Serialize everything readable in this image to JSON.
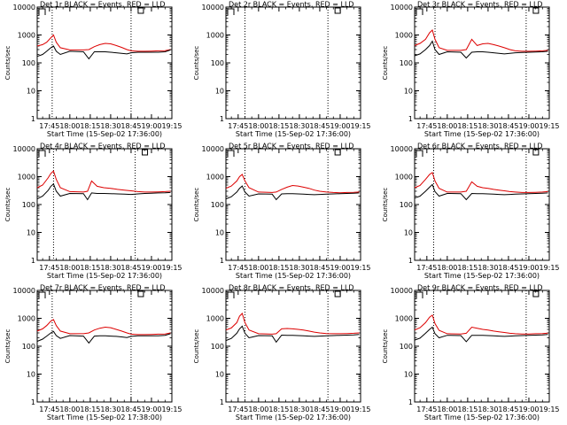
{
  "figure": {
    "panel_titles": [
      "Det 1r BLACK = Events, RED = LLD",
      "Det 2r BLACK = Events, RED = LLD",
      "Det 3r BLACK = Events, RED = LLD",
      "Det 4r BLACK = Events, RED = LLD",
      "Det 5r BLACK = Events, RED = LLD",
      "Det 6r BLACK = Events, RED = LLD",
      "Det 7r BLACK = Events, RED = LLD",
      "Det 8r BLACK = Events, RED = LLD",
      "Det 9r BLACK = Events, RED = LLD"
    ],
    "xlabels": [
      "Start Time (15-Sep-02 17:36:00)",
      "Start Time (15-Sep-02 17:36:00)",
      "Start Time (15-Sep-02 17:36:00)",
      "Start Time (15-Sep-02 17:36:00)",
      "Start Time (15-Sep-02 17:36:00)",
      "Start Time (15-Sep-02 17:36:00)",
      "Start Time (15-Sep-02 17:38:00)",
      "Start Time (15-Sep-02 17:36:00)",
      "Start Time (15-Sep-02 17:36:00)"
    ],
    "ylabel": "Counts/sec",
    "colors": {
      "events": "#000000",
      "lld": "#dd0000",
      "axes": "#000000",
      "background": "#ffffff"
    }
  },
  "chart_data": [
    {
      "type": "line",
      "title": "Det 1r BLACK = Events, RED = LLD",
      "xlabel": "Start Time (15-Sep-02 17:36:00)",
      "ylabel": "Counts/sec",
      "yscale": "log",
      "ylim": [
        1,
        10000
      ],
      "xlim": [
        "17:36",
        "19:15"
      ],
      "x_ticks": [
        "17:45",
        "18:00",
        "18:15",
        "18:30",
        "18:45",
        "19:00",
        "19:15"
      ],
      "y_ticks": [
        "1",
        "10",
        "100",
        "1000",
        "10000"
      ],
      "vlines": [
        "17:47",
        "18:45"
      ],
      "x": [
        "17:36",
        "17:40",
        "17:43",
        "17:46",
        "17:48",
        "17:50",
        "17:53",
        "18:00",
        "18:10",
        "18:14",
        "18:18",
        "18:22",
        "18:26",
        "18:30",
        "18:34",
        "18:38",
        "18:42",
        "18:45",
        "18:50",
        "18:55",
        "19:00",
        "19:05",
        "19:10",
        "19:14"
      ],
      "series": [
        {
          "name": "LLD",
          "color": "#dd0000",
          "values": [
            400,
            450,
            550,
            800,
            1000,
            550,
            350,
            290,
            290,
            300,
            380,
            450,
            500,
            480,
            420,
            360,
            300,
            270,
            260,
            260,
            265,
            270,
            275,
            300
          ]
        },
        {
          "name": "Events",
          "color": "#000000",
          "values": [
            170,
            200,
            260,
            350,
            400,
            260,
            200,
            260,
            250,
            140,
            250,
            250,
            250,
            240,
            230,
            220,
            210,
            230,
            240,
            240,
            240,
            240,
            250,
            290
          ]
        }
      ]
    },
    {
      "type": "line",
      "title": "Det 2r BLACK = Events, RED = LLD",
      "xlabel": "Start Time (15-Sep-02 17:36:00)",
      "ylabel": "Counts/sec",
      "yscale": "log",
      "ylim": [
        1,
        10000
      ],
      "xlim": [
        "17:36",
        "19:15"
      ],
      "x_ticks": [
        "17:45",
        "18:00",
        "18:15",
        "18:30",
        "18:45",
        "19:00",
        "19:15"
      ],
      "y_ticks": [
        "1",
        "10",
        "100",
        "1000",
        "10000"
      ],
      "vlines": [
        "17:50",
        "18:51"
      ],
      "x": [],
      "series": []
    },
    {
      "type": "line",
      "title": "Det 3r BLACK = Events, RED = LLD",
      "xlabel": "Start Time (15-Sep-02 17:36:00)",
      "ylabel": "Counts/sec",
      "yscale": "log",
      "ylim": [
        1,
        10000
      ],
      "xlim": [
        "17:36",
        "19:15"
      ],
      "x_ticks": [
        "17:45",
        "18:00",
        "18:15",
        "18:30",
        "18:45",
        "19:00",
        "19:15"
      ],
      "y_ticks": [
        "1",
        "10",
        "100",
        "1000",
        "10000"
      ],
      "vlines": [
        "17:51",
        "18:58"
      ],
      "x": [
        "17:36",
        "17:40",
        "17:44",
        "17:47",
        "17:49",
        "17:51",
        "17:54",
        "18:00",
        "18:10",
        "18:14",
        "18:18",
        "18:22",
        "18:26",
        "18:30",
        "18:34",
        "18:38",
        "18:42",
        "18:46",
        "18:50",
        "18:55",
        "19:00",
        "19:05",
        "19:10",
        "19:14"
      ],
      "series": [
        {
          "name": "LLD",
          "color": "#dd0000",
          "values": [
            420,
            500,
            700,
            1200,
            1500,
            700,
            350,
            280,
            280,
            300,
            700,
            420,
            480,
            500,
            450,
            400,
            350,
            300,
            270,
            260,
            260,
            265,
            270,
            280
          ]
        },
        {
          "name": "Events",
          "color": "#000000",
          "values": [
            180,
            210,
            300,
            420,
            600,
            300,
            200,
            250,
            240,
            150,
            240,
            250,
            250,
            240,
            230,
            220,
            210,
            220,
            230,
            235,
            240,
            245,
            250,
            260
          ]
        }
      ]
    },
    {
      "type": "line",
      "title": "Det 4r BLACK = Events, RED = LLD",
      "xlabel": "Start Time (15-Sep-02 17:36:00)",
      "ylabel": "Counts/sec",
      "yscale": "log",
      "ylim": [
        1,
        10000
      ],
      "xlim": [
        "17:36",
        "19:15"
      ],
      "x_ticks": [
        "17:45",
        "18:00",
        "18:15",
        "18:30",
        "18:45",
        "19:00",
        "19:15"
      ],
      "y_ticks": [
        "1",
        "10",
        "100",
        "1000",
        "10000"
      ],
      "vlines": [
        "17:48",
        "18:48"
      ],
      "x": [
        "17:36",
        "17:40",
        "17:44",
        "17:46",
        "17:48",
        "17:50",
        "17:53",
        "18:00",
        "18:10",
        "18:13",
        "18:16",
        "18:20",
        "18:25",
        "18:30",
        "18:35",
        "18:40",
        "18:45",
        "18:50",
        "18:55",
        "19:00",
        "19:05",
        "19:10",
        "19:14"
      ],
      "series": [
        {
          "name": "LLD",
          "color": "#dd0000",
          "values": [
            400,
            500,
            900,
            1300,
            1600,
            800,
            400,
            290,
            280,
            300,
            700,
            450,
            400,
            380,
            350,
            330,
            310,
            290,
            280,
            280,
            285,
            290,
            300
          ]
        },
        {
          "name": "Events",
          "color": "#000000",
          "values": [
            160,
            200,
            320,
            450,
            550,
            300,
            200,
            250,
            245,
            150,
            260,
            250,
            250,
            245,
            240,
            235,
            230,
            240,
            250,
            255,
            260,
            265,
            270
          ]
        }
      ]
    },
    {
      "type": "line",
      "title": "Det 5r BLACK = Events, RED = LLD",
      "xlabel": "Start Time (15-Sep-02 17:36:00)",
      "ylabel": "Counts/sec",
      "yscale": "log",
      "ylim": [
        1,
        10000
      ],
      "xlim": [
        "17:36",
        "19:15"
      ],
      "x_ticks": [
        "17:45",
        "18:00",
        "18:15",
        "18:30",
        "18:45",
        "19:00",
        "19:15"
      ],
      "y_ticks": [
        "1",
        "10",
        "100",
        "1000",
        "10000"
      ],
      "vlines": [
        "17:50",
        "18:51"
      ],
      "x": [
        "17:36",
        "17:40",
        "17:44",
        "17:46",
        "17:48",
        "17:50",
        "17:53",
        "18:00",
        "18:10",
        "18:13",
        "18:17",
        "18:21",
        "18:25",
        "18:29",
        "18:33",
        "18:37",
        "18:41",
        "18:45",
        "18:50",
        "18:55",
        "19:00",
        "19:05",
        "19:10",
        "19:14"
      ],
      "series": [
        {
          "name": "LLD",
          "color": "#dd0000",
          "values": [
            380,
            460,
            700,
            1000,
            1200,
            700,
            400,
            280,
            270,
            280,
            350,
            420,
            480,
            460,
            420,
            380,
            330,
            300,
            280,
            270,
            265,
            270,
            275,
            280
          ]
        },
        {
          "name": "Events",
          "color": "#000000",
          "values": [
            160,
            190,
            280,
            380,
            460,
            280,
            200,
            240,
            235,
            150,
            240,
            245,
            245,
            240,
            235,
            230,
            225,
            230,
            235,
            240,
            245,
            250,
            255,
            260
          ]
        }
      ]
    },
    {
      "type": "line",
      "title": "Det 6r BLACK = Events, RED = LLD",
      "xlabel": "Start Time (15-Sep-02 17:36:00)",
      "ylabel": "Counts/sec",
      "yscale": "log",
      "ylim": [
        1,
        10000
      ],
      "xlim": [
        "17:36",
        "19:15"
      ],
      "x_ticks": [
        "17:45",
        "18:00",
        "18:15",
        "18:30",
        "18:45",
        "19:00",
        "19:15"
      ],
      "y_ticks": [
        "1",
        "10",
        "100",
        "1000",
        "10000"
      ],
      "vlines": [
        "17:50",
        "18:58"
      ],
      "x": [
        "17:36",
        "17:40",
        "17:44",
        "17:47",
        "17:49",
        "17:51",
        "17:54",
        "18:00",
        "18:10",
        "18:14",
        "18:18",
        "18:22",
        "18:26",
        "18:30",
        "18:34",
        "18:38",
        "18:42",
        "18:46",
        "18:50",
        "18:55",
        "19:00",
        "19:05",
        "19:10",
        "19:14"
      ],
      "series": [
        {
          "name": "LLD",
          "color": "#dd0000",
          "values": [
            400,
            480,
            800,
            1200,
            1400,
            700,
            380,
            280,
            280,
            300,
            650,
            450,
            400,
            380,
            350,
            330,
            310,
            290,
            280,
            270,
            270,
            275,
            280,
            290
          ]
        },
        {
          "name": "Events",
          "color": "#000000",
          "values": [
            170,
            200,
            300,
            420,
            520,
            290,
            200,
            250,
            245,
            150,
            250,
            245,
            245,
            240,
            235,
            230,
            225,
            230,
            235,
            240,
            245,
            250,
            255,
            260
          ]
        }
      ]
    },
    {
      "type": "line",
      "title": "Det 7r BLACK = Events, RED = LLD",
      "xlabel": "Start Time (15-Sep-02 17:38:00)",
      "ylabel": "Counts/sec",
      "yscale": "log",
      "ylim": [
        1,
        10000
      ],
      "xlim": [
        "17:36",
        "19:15"
      ],
      "x_ticks": [
        "17:45",
        "18:00",
        "18:15",
        "18:30",
        "18:45",
        "19:00",
        "19:15"
      ],
      "y_ticks": [
        "1",
        "10",
        "100",
        "1000",
        "10000"
      ],
      "vlines": [
        "17:47",
        "18:45"
      ],
      "x": [
        "17:36",
        "17:40",
        "17:43",
        "17:46",
        "17:48",
        "17:50",
        "17:53",
        "18:00",
        "18:10",
        "18:14",
        "18:18",
        "18:22",
        "18:26",
        "18:30",
        "18:34",
        "18:38",
        "18:42",
        "18:45",
        "18:50",
        "18:55",
        "19:00",
        "19:05",
        "19:10",
        "19:14"
      ],
      "series": [
        {
          "name": "LLD",
          "color": "#dd0000",
          "values": [
            350,
            420,
            550,
            800,
            900,
            550,
            350,
            280,
            280,
            300,
            380,
            440,
            480,
            460,
            400,
            350,
            300,
            270,
            260,
            260,
            265,
            270,
            275,
            300
          ]
        },
        {
          "name": "Events",
          "color": "#000000",
          "values": [
            150,
            180,
            230,
            300,
            340,
            240,
            190,
            240,
            230,
            130,
            230,
            235,
            235,
            230,
            225,
            215,
            205,
            225,
            235,
            235,
            235,
            235,
            245,
            280
          ]
        }
      ]
    },
    {
      "type": "line",
      "title": "Det 8r BLACK = Events, RED = LLD",
      "xlabel": "Start Time (15-Sep-02 17:36:00)",
      "ylabel": "Counts/sec",
      "yscale": "log",
      "ylim": [
        1,
        10000
      ],
      "xlim": [
        "17:36",
        "19:15"
      ],
      "x_ticks": [
        "17:45",
        "18:00",
        "18:15",
        "18:30",
        "18:45",
        "19:00",
        "19:15"
      ],
      "y_ticks": [
        "1",
        "10",
        "100",
        "1000",
        "10000"
      ],
      "vlines": [
        "17:50",
        "18:51"
      ],
      "x": [
        "17:36",
        "17:40",
        "17:44",
        "17:46",
        "17:48",
        "17:50",
        "17:53",
        "18:00",
        "18:10",
        "18:13",
        "18:17",
        "18:21",
        "18:25",
        "18:29",
        "18:33",
        "18:37",
        "18:41",
        "18:45",
        "18:50",
        "18:55",
        "19:00",
        "19:05",
        "19:10",
        "19:14"
      ],
      "series": [
        {
          "name": "LLD",
          "color": "#dd0000",
          "values": [
            380,
            450,
            700,
            1200,
            1500,
            700,
            380,
            280,
            270,
            280,
            420,
            430,
            420,
            400,
            380,
            350,
            320,
            300,
            285,
            280,
            280,
            285,
            290,
            300
          ]
        },
        {
          "name": "Events",
          "color": "#000000",
          "values": [
            160,
            190,
            290,
            420,
            520,
            290,
            200,
            240,
            235,
            140,
            250,
            245,
            245,
            240,
            235,
            230,
            225,
            230,
            235,
            240,
            245,
            250,
            255,
            265
          ]
        }
      ]
    },
    {
      "type": "line",
      "title": "Det 9r BLACK = Events, RED = LLD",
      "xlabel": "Start Time (15-Sep-02 17:36:00)",
      "ylabel": "Counts/sec",
      "yscale": "log",
      "ylim": [
        1,
        10000
      ],
      "xlim": [
        "17:36",
        "19:15"
      ],
      "x_ticks": [
        "17:45",
        "18:00",
        "18:15",
        "18:30",
        "18:45",
        "19:00",
        "19:15"
      ],
      "y_ticks": [
        "1",
        "10",
        "100",
        "1000",
        "10000"
      ],
      "vlines": [
        "17:50",
        "18:58"
      ],
      "x": [
        "17:36",
        "17:40",
        "17:44",
        "17:47",
        "17:49",
        "17:51",
        "17:54",
        "18:00",
        "18:10",
        "18:14",
        "18:18",
        "18:22",
        "18:26",
        "18:30",
        "18:34",
        "18:38",
        "18:42",
        "18:46",
        "18:50",
        "18:55",
        "19:00",
        "19:05",
        "19:10",
        "19:14"
      ],
      "series": [
        {
          "name": "LLD",
          "color": "#dd0000",
          "values": [
            380,
            460,
            700,
            1100,
            1300,
            650,
            370,
            280,
            275,
            290,
            480,
            440,
            400,
            380,
            350,
            330,
            310,
            290,
            280,
            275,
            275,
            280,
            285,
            295
          ]
        },
        {
          "name": "Events",
          "color": "#000000",
          "values": [
            165,
            195,
            290,
            400,
            480,
            280,
            200,
            245,
            240,
            145,
            245,
            245,
            245,
            240,
            235,
            230,
            225,
            230,
            235,
            240,
            245,
            250,
            255,
            265
          ]
        }
      ]
    }
  ]
}
